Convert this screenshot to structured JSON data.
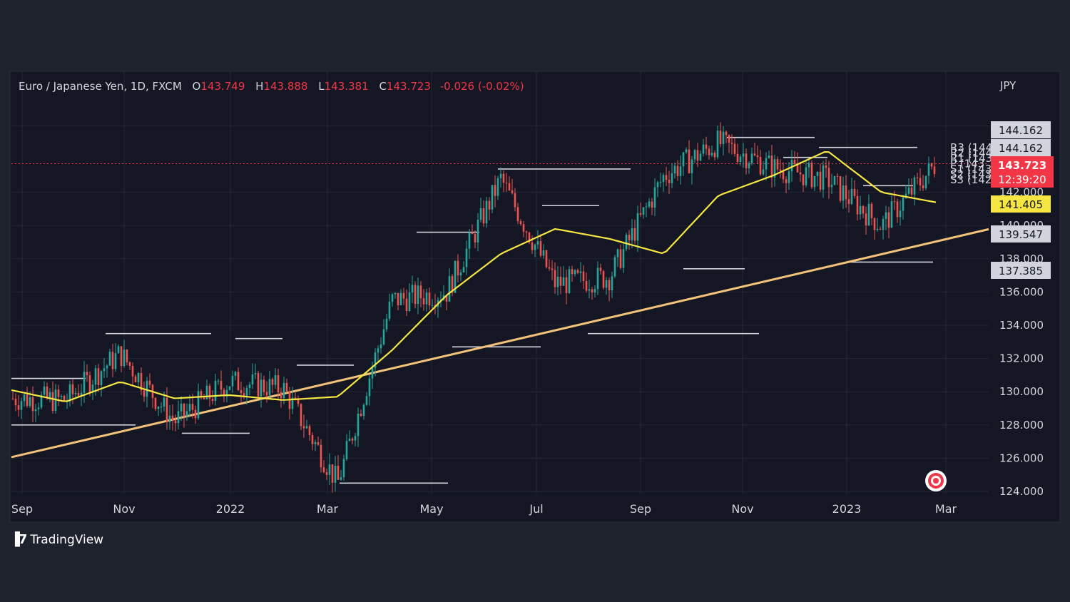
{
  "header": {
    "symbol": "Euro / Japanese Yen, 1D, FXCM",
    "open_label": "O",
    "open": "143.749",
    "high_label": "H",
    "high": "143.888",
    "low_label": "L",
    "low": "143.381",
    "close_label": "C",
    "close": "143.723",
    "change": "-0.026 (-0.02%)"
  },
  "currency": "JPY",
  "price_tags": {
    "top1": "144.162",
    "top2": "144.162",
    "last": "143.723",
    "countdown": "12:39:20",
    "ma": "141.405",
    "support1": "139.547",
    "support2": "137.385"
  },
  "pivot_labels": [
    "R3 (144",
    "R2 (144",
    "R1 (143",
    "P (143",
    "S1 (143",
    "S2 (143",
    "S3 (142"
  ],
  "brand": {
    "name": "TradingView"
  },
  "colors": {
    "background": "#1e222d",
    "up_candle": "#26a69a",
    "down_candle": "#ef5350",
    "moving_average": "#f5e642",
    "trendline": "#f3c27a",
    "last_price": "#f23645",
    "pivot_labels": "#f7931a",
    "levels": "#d1d4dc"
  },
  "chart_data": {
    "type": "line",
    "x_ticks": [
      "Sep",
      "Nov",
      "2022",
      "Mar",
      "May",
      "Jul",
      "Sep",
      "Nov",
      "2023",
      "Mar"
    ],
    "y_ticks": [
      "124.000",
      "126.000",
      "128.000",
      "130.000",
      "132.000",
      "134.000",
      "136.000",
      "138.000",
      "140.000",
      "142.000",
      "146.000"
    ],
    "ylim": [
      124,
      147
    ],
    "x": [
      "2021-09",
      "2021-10",
      "2021-11",
      "2021-12",
      "2022-01",
      "2022-02",
      "2022-03",
      "2022-04",
      "2022-05",
      "2022-06",
      "2022-07",
      "2022-08",
      "2022-09",
      "2022-10",
      "2022-11",
      "2022-12",
      "2023-01",
      "2023-02"
    ],
    "series": [
      {
        "values": [
          129.6,
          129.5,
          132.3,
          128.2,
          130.6,
          130.2,
          124.5,
          135.5,
          136.0,
          142.8,
          136.5,
          136.9,
          143.0,
          145.0,
          143.5,
          142.8,
          140.0,
          143.7
        ]
      },
      {
        "values": [
          130.1,
          129.4,
          130.6,
          129.6,
          129.8,
          129.5,
          129.7,
          132.5,
          135.8,
          138.3,
          139.8,
          139.2,
          138.3,
          141.8,
          143.0,
          144.5,
          142.0,
          141.4
        ]
      }
    ],
    "trendline": {
      "start": [
        "2021-08",
        125.3
      ],
      "end": [
        "2023-03",
        139.8
      ]
    },
    "support_levels": [
      128.0,
      127.5,
      124.5,
      132.7,
      133.5,
      137.4,
      137.8
    ],
    "resistance_levels": [
      130.8,
      133.5,
      131.6,
      133.2,
      139.6,
      143.4,
      141.2,
      145.3,
      144.1,
      142.4,
      144.7
    ]
  }
}
